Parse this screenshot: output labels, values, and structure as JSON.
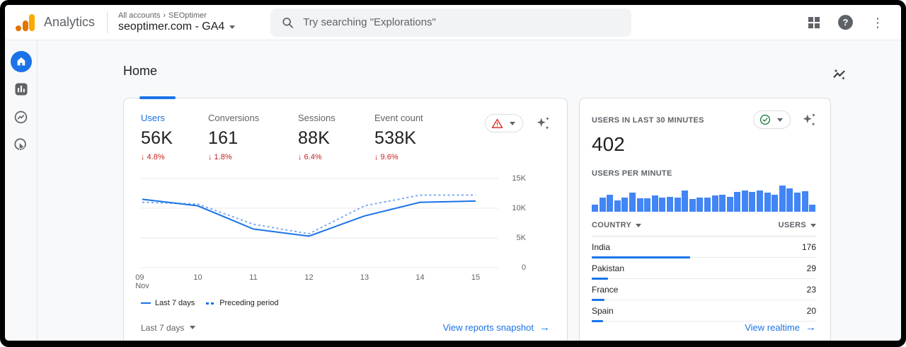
{
  "header": {
    "product_name": "Analytics",
    "breadcrumb_parts": [
      "All accounts",
      "SEOptimer"
    ],
    "property_selector": "seoptimer.com - GA4",
    "search_placeholder": "Try searching \"Explorations\""
  },
  "sidebar": {
    "items": [
      "home",
      "reports",
      "explore",
      "advertising"
    ],
    "active": "home"
  },
  "page": {
    "title": "Home"
  },
  "overview_card": {
    "metrics": [
      {
        "label": "Users",
        "value": "56K",
        "delta": "↓ 4.8%",
        "selected": true
      },
      {
        "label": "Conversions",
        "value": "161",
        "delta": "↓ 1.8%",
        "selected": false
      },
      {
        "label": "Sessions",
        "value": "88K",
        "delta": "↓ 6.4%",
        "selected": false
      },
      {
        "label": "Event count",
        "value": "538K",
        "delta": "↓ 9.6%",
        "selected": false
      }
    ],
    "legend": [
      "Last 7 days",
      "Preceding period"
    ],
    "range_selector": "Last 7 days",
    "link": "View reports snapshot"
  },
  "realtime_card": {
    "title": "USERS IN LAST 30 MINUTES",
    "value": "402",
    "bars_label": "USERS PER MINUTE",
    "table": {
      "columns": [
        "COUNTRY",
        "USERS"
      ],
      "rows": [
        {
          "name": "India",
          "users": "176",
          "pct": 44
        },
        {
          "name": "Pakistan",
          "users": "29",
          "pct": 7.2
        },
        {
          "name": "France",
          "users": "23",
          "pct": 5.7
        },
        {
          "name": "Spain",
          "users": "20",
          "pct": 5.0
        }
      ]
    },
    "link": "View realtime"
  },
  "chart_data": [
    {
      "type": "line",
      "title": "Users trend (last 7 days vs preceding period)",
      "x_ticks": [
        {
          "label": "09",
          "sub": "Nov"
        },
        {
          "label": "10"
        },
        {
          "label": "11"
        },
        {
          "label": "12"
        },
        {
          "label": "13"
        },
        {
          "label": "14"
        },
        {
          "label": "15"
        }
      ],
      "series": [
        {
          "name": "Last 7 days",
          "style": "solid",
          "values_k": [
            11.5,
            10.4,
            6.5,
            5.3,
            8.7,
            11.0,
            11.2
          ]
        },
        {
          "name": "Preceding period",
          "style": "dashed",
          "values_k": [
            11.0,
            10.7,
            7.3,
            5.7,
            10.4,
            12.2,
            12.2
          ]
        }
      ],
      "ylim_k": [
        0,
        15
      ],
      "y_tick_values_k": [
        15,
        10,
        5,
        0
      ],
      "y_tick_labels": [
        "15K",
        "10K",
        "5K",
        "0"
      ],
      "grid": true,
      "legend_position": "bottom"
    },
    {
      "type": "bar",
      "title": "Users per minute (relative heights %, 30 minutes)",
      "values": [
        25,
        50,
        62,
        42,
        52,
        68,
        48,
        48,
        58,
        52,
        55,
        50,
        78,
        45,
        52,
        50,
        58,
        62,
        55,
        72,
        78,
        72,
        78,
        68,
        62,
        95,
        85,
        70,
        75,
        25
      ]
    }
  ],
  "colors": {
    "accent_blue": "#1a73e8",
    "bar_blue": "#4285f4",
    "dashed_blue": "#7baaf7",
    "delta_red": "#c5221f",
    "warning": "#d93025",
    "success_green": "#188038",
    "text_dark": "#202124",
    "text_muted": "#5f6368",
    "page_bg": "#f8f9fa"
  }
}
